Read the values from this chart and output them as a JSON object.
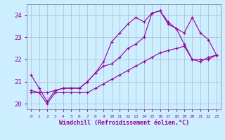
{
  "title": "",
  "xlabel": "Windchill (Refroidissement éolien,°C)",
  "background_color": "#cceeff",
  "grid_color": "#aabbcc",
  "line_color": "#990099",
  "xlim": [
    -0.5,
    23.5
  ],
  "ylim": [
    19.75,
    24.5
  ],
  "yticks": [
    20,
    21,
    22,
    23,
    24
  ],
  "xticks": [
    0,
    1,
    2,
    3,
    4,
    5,
    6,
    7,
    8,
    9,
    10,
    11,
    12,
    13,
    14,
    15,
    16,
    17,
    18,
    19,
    20,
    21,
    22,
    23
  ],
  "series1_x": [
    0,
    1,
    2,
    3,
    4,
    5,
    6,
    7,
    8,
    9,
    10,
    11,
    12,
    13,
    14,
    15,
    16,
    17,
    18,
    19,
    20,
    21,
    22,
    23
  ],
  "series1_y": [
    21.3,
    20.7,
    20.1,
    20.6,
    20.7,
    20.7,
    20.7,
    21.0,
    21.4,
    21.9,
    22.8,
    23.2,
    23.6,
    23.9,
    23.7,
    24.1,
    24.2,
    23.7,
    23.4,
    23.2,
    23.9,
    23.2,
    22.9,
    22.2
  ],
  "series2_x": [
    0,
    1,
    2,
    3,
    4,
    5,
    6,
    7,
    8,
    9,
    10,
    11,
    12,
    13,
    14,
    15,
    16,
    17,
    18,
    19,
    20,
    21,
    22,
    23
  ],
  "series2_y": [
    20.6,
    20.5,
    20.5,
    20.6,
    20.7,
    20.7,
    20.7,
    21.0,
    21.4,
    21.7,
    21.8,
    22.1,
    22.5,
    22.7,
    23.0,
    24.1,
    24.2,
    23.6,
    23.4,
    22.7,
    22.0,
    22.0,
    22.0,
    22.2
  ],
  "series3_x": [
    0,
    1,
    2,
    3,
    4,
    5,
    6,
    7,
    8,
    9,
    10,
    11,
    12,
    13,
    14,
    15,
    16,
    17,
    18,
    19,
    20,
    21,
    22,
    23
  ],
  "series3_y": [
    20.5,
    20.5,
    20.0,
    20.5,
    20.5,
    20.5,
    20.5,
    20.5,
    20.7,
    20.9,
    21.1,
    21.3,
    21.5,
    21.7,
    21.9,
    22.1,
    22.3,
    22.4,
    22.5,
    22.6,
    22.0,
    21.9,
    22.1,
    22.2
  ]
}
